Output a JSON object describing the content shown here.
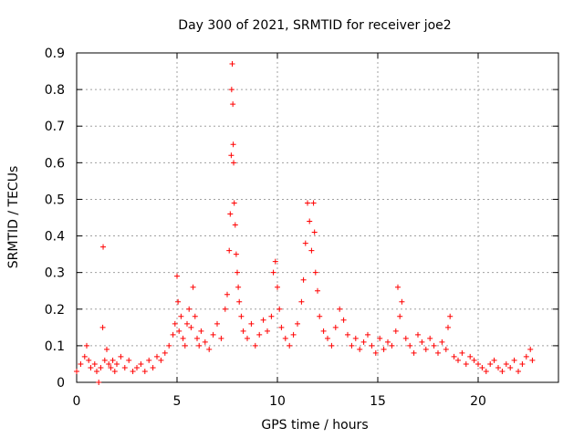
{
  "chart_data": {
    "type": "scatter",
    "title": "Day 300 of 2021, SRMTID for receiver joe2",
    "xlabel": "GPS time / hours",
    "ylabel": "SRMTID / TECUs",
    "xlim": [
      0,
      24
    ],
    "ylim": [
      0,
      0.9
    ],
    "xticks": [
      0,
      5,
      10,
      15,
      20
    ],
    "xtick_labels": [
      "0",
      "5",
      "10",
      "15",
      "20"
    ],
    "yticks": [
      0,
      0.1,
      0.2,
      0.3,
      0.4,
      0.5,
      0.6,
      0.7,
      0.8,
      0.9
    ],
    "ytick_labels": [
      "0",
      "0.1",
      "0.2",
      "0.3",
      "0.4",
      "0.5",
      "0.6",
      "0.7",
      "0.8",
      "0.9"
    ],
    "grid": true,
    "marker": "+",
    "color": "#ff0000",
    "series": [
      {
        "name": "SRMTID",
        "x": [
          0.0,
          0.2,
          0.4,
          0.5,
          0.6,
          0.7,
          0.9,
          1.0,
          1.1,
          1.2,
          1.3,
          1.32,
          1.4,
          1.5,
          1.6,
          1.7,
          1.8,
          1.9,
          2.0,
          2.2,
          2.4,
          2.6,
          2.8,
          3.0,
          3.2,
          3.4,
          3.6,
          3.8,
          4.0,
          4.2,
          4.4,
          4.6,
          4.8,
          4.9,
          5.0,
          5.05,
          5.1,
          5.2,
          5.3,
          5.4,
          5.5,
          5.6,
          5.7,
          5.8,
          5.9,
          6.0,
          6.1,
          6.2,
          6.4,
          6.6,
          6.8,
          7.0,
          7.2,
          7.4,
          7.5,
          7.6,
          7.65,
          7.7,
          7.72,
          7.75,
          7.78,
          7.8,
          7.82,
          7.85,
          7.9,
          7.95,
          8.0,
          8.05,
          8.1,
          8.2,
          8.3,
          8.5,
          8.7,
          8.9,
          9.1,
          9.3,
          9.5,
          9.7,
          9.8,
          9.9,
          10.0,
          10.1,
          10.2,
          10.4,
          10.6,
          10.8,
          11.0,
          11.2,
          11.3,
          11.4,
          11.5,
          11.6,
          11.7,
          11.8,
          11.85,
          11.9,
          12.0,
          12.1,
          12.3,
          12.5,
          12.7,
          12.9,
          13.1,
          13.3,
          13.5,
          13.7,
          13.9,
          14.1,
          14.3,
          14.5,
          14.7,
          14.9,
          15.1,
          15.3,
          15.5,
          15.7,
          15.9,
          16.0,
          16.1,
          16.2,
          16.4,
          16.6,
          16.8,
          17.0,
          17.2,
          17.4,
          17.6,
          17.8,
          18.0,
          18.2,
          18.4,
          18.5,
          18.6,
          18.8,
          19.0,
          19.2,
          19.4,
          19.6,
          19.8,
          20.0,
          20.2,
          20.4,
          20.6,
          20.8,
          21.0,
          21.2,
          21.4,
          21.6,
          21.8,
          22.0,
          22.2,
          22.4,
          22.6,
          22.7
        ],
        "y": [
          0.03,
          0.05,
          0.07,
          0.1,
          0.06,
          0.04,
          0.05,
          0.03,
          0.0,
          0.04,
          0.15,
          0.37,
          0.06,
          0.09,
          0.05,
          0.04,
          0.06,
          0.03,
          0.05,
          0.07,
          0.04,
          0.06,
          0.03,
          0.04,
          0.05,
          0.03,
          0.06,
          0.04,
          0.07,
          0.06,
          0.08,
          0.1,
          0.13,
          0.16,
          0.29,
          0.22,
          0.14,
          0.18,
          0.12,
          0.1,
          0.16,
          0.2,
          0.15,
          0.26,
          0.18,
          0.12,
          0.1,
          0.14,
          0.11,
          0.09,
          0.13,
          0.16,
          0.12,
          0.2,
          0.24,
          0.36,
          0.46,
          0.62,
          0.8,
          0.87,
          0.76,
          0.65,
          0.6,
          0.49,
          0.43,
          0.35,
          0.3,
          0.26,
          0.22,
          0.18,
          0.14,
          0.12,
          0.16,
          0.1,
          0.13,
          0.17,
          0.14,
          0.18,
          0.3,
          0.33,
          0.26,
          0.2,
          0.15,
          0.12,
          0.1,
          0.13,
          0.16,
          0.22,
          0.28,
          0.38,
          0.49,
          0.44,
          0.36,
          0.49,
          0.41,
          0.3,
          0.25,
          0.18,
          0.14,
          0.12,
          0.1,
          0.15,
          0.2,
          0.17,
          0.13,
          0.1,
          0.12,
          0.09,
          0.11,
          0.13,
          0.1,
          0.08,
          0.12,
          0.09,
          0.11,
          0.1,
          0.14,
          0.26,
          0.18,
          0.22,
          0.12,
          0.1,
          0.08,
          0.13,
          0.11,
          0.09,
          0.12,
          0.1,
          0.08,
          0.11,
          0.09,
          0.15,
          0.18,
          0.07,
          0.06,
          0.08,
          0.05,
          0.07,
          0.06,
          0.05,
          0.04,
          0.03,
          0.05,
          0.06,
          0.04,
          0.03,
          0.05,
          0.04,
          0.06,
          0.03,
          0.05,
          0.07,
          0.09,
          0.06
        ]
      }
    ]
  }
}
